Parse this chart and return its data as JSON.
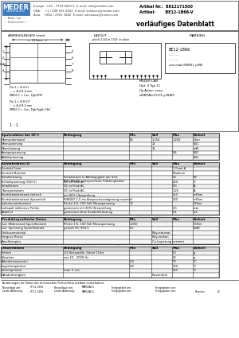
{
  "title_article_nr": "Artikel Nr.:  8812171500",
  "title_artikel": "Artikel:       BE12-1B66-V",
  "title_doc": "vorläufiges Datenblatt",
  "company": "MEDER",
  "company_sub": "electronics",
  "header_left1": "Europe: +49 - 7733 9400 0  E-mail: info@meder.com",
  "header_left2": "USA:    +1 / 508 535 2002  E-mail: salesusa@meder.com",
  "header_left3": "Asia:   +852 / 2955 1682  E-mail: salesasia@meder.com",
  "section1_title": "ABMESSUNGEN (mm)",
  "section2_title": "LAYOUT",
  "section2_sub": "pitch 2.54 in 1/10ʳ in alive",
  "section3_title": "MARKING",
  "spulen_header": [
    "Spulendaten bei 20°C",
    "Bedingung",
    "Min",
    "Soll",
    "Max",
    "Einheit"
  ],
  "spulen_rows": [
    [
      "Nennwiderstand",
      "",
      "80",
      "1.150",
      "1.250",
      "Ohm"
    ],
    [
      "Nennspannung",
      "",
      "",
      "12",
      "",
      "VDC"
    ],
    [
      "Nennleistung",
      "",
      "",
      "11",
      "",
      "mW"
    ],
    [
      "Anzugsspannung",
      "",
      "",
      "",
      "8.4",
      "VDC"
    ],
    [
      "Abfallspannung",
      "",
      "",
      "",
      "",
      "VDC"
    ]
  ],
  "kontakt_header": [
    "Kontaktdaten 4)",
    "Bedingung",
    "Min",
    "Soll",
    "Max",
    "Einheit"
  ],
  "kontakt_rows": [
    [
      "Kontakt Form",
      "",
      "",
      "",
      "1 Form A",
      ""
    ],
    [
      "Kontakt Material",
      "",
      "",
      "",
      "Rhodium",
      ""
    ],
    [
      "Schaltleistung",
      "Schaltstrom in Abhängigkeit der Soll-\nBGV-BG-BG, entsprechend FCA-Empfehlen",
      "",
      "",
      "10",
      "W"
    ],
    [
      "Schaltspannung (100 V)",
      "DC or Peak AC",
      "",
      "",
      "200",
      "V"
    ],
    [
      "Schaltstrom",
      "DC or Peak AC",
      "",
      "",
      "0.5",
      "A"
    ],
    [
      "Transportstrom",
      "DC or Peak AC",
      "",
      "",
      "1.25",
      "A"
    ],
    [
      "Kontaktwiderstand statisch",
      "bei 80% Überprüfung",
      "",
      "",
      "150",
      "mOhm"
    ],
    [
      "Kontaktwiderstand dynamisch",
      "KHBGE? 1.5 ms Ansprechverzögerung maximal",
      "",
      "",
      "200",
      "mOhm"
    ],
    [
      "Isolationswiderstand",
      "Rh bei 1%, 100 Volt Messspannung",
      "10",
      "",
      "",
      "GOhm"
    ],
    [
      "Luftspalt inklüssive Prüfen",
      "gemessen mit 40% Überprüfung",
      "",
      "",
      "0.5",
      "mm"
    ],
    [
      "Abfalleil",
      "gemessen ohne Sonderbelastung",
      "",
      "",
      "0.1",
      "ms"
    ]
  ],
  "produkt_header": [
    "Produktspezifische Daten",
    "Bedingung",
    "Min",
    "Soll",
    "Max",
    "Einheit"
  ],
  "produkt_rows": [
    [
      "Isol. Widerstand Spule/Kontakt",
      "Rh bei 1%, 100 Volt Messspannung",
      "1,000",
      "",
      "",
      "GOhm"
    ],
    [
      "Isol. Spannung Spule/Kontakt",
      "gemäß IEC 950-5",
      "6.5",
      "",
      "",
      "kVAC"
    ],
    [
      "Gehäusematerial",
      "",
      "",
      "Polycarbonat",
      "",
      ""
    ],
    [
      "Verguss Masse",
      "",
      "",
      "Polyurethan",
      "",
      ""
    ],
    [
      "Anschlusspins",
      "",
      "",
      "Cu-Legierung verzinnt",
      "",
      ""
    ]
  ],
  "umwelt_header": [
    "Umweltdaten",
    "Bedingung",
    "Min",
    "Soll",
    "Max",
    "Einheit"
  ],
  "umwelt_rows": [
    [
      "Schock",
      "1/2 Sinuswelle, Dauer 11ms",
      "",
      "",
      "50",
      "g"
    ],
    [
      "Vibration",
      "von 10 - 2000 Hz",
      "",
      "",
      "20",
      "g"
    ],
    [
      "Arbeitstemperatur",
      "",
      "-20",
      "",
      "70",
      "°C"
    ],
    [
      "Lagertemperatur",
      "",
      "-40",
      "",
      "100",
      "°C"
    ],
    [
      "Löttemperatur",
      "max. 5 sec.",
      "",
      "",
      "260",
      "°C"
    ],
    [
      "Wanderfestigkeit",
      "",
      "",
      "Flussmittel",
      "",
      ""
    ]
  ],
  "footer1": "Anderungen im Sinne des technischen Fortschritts bleiben vorbehalten.",
  "footer2_1": "Neuanlage am:",
  "footer2_2": "07.11.1981",
  "footer2_3": "Neuanlage von:",
  "footer2_4": "MAKO/ACG",
  "footer2_5": "Freigegeben am:",
  "footer2_6": "Freigegeben von:",
  "footer3_1": "Letzte Anderung:",
  "footer3_2": "07.11.1981",
  "footer3_3": "Letzte Anderung:",
  "footer3_4": "MAKO/ACG",
  "footer3_5": "Freigegeben am:",
  "footer3_6": "Freigegeben von:",
  "footer3_7": "Revision:",
  "footer3_8": "01",
  "bg_color": "#ffffff",
  "watermark_color": "#b8cfe0"
}
